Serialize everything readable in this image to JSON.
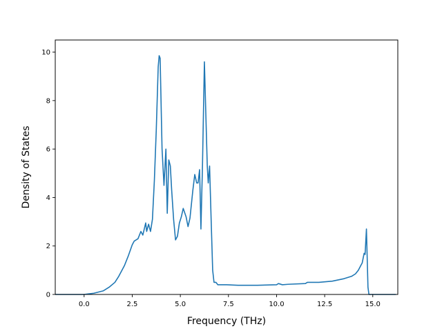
{
  "chart_data": {
    "type": "line",
    "title": "",
    "xlabel": "Frequency (THz)",
    "ylabel": "Density of States",
    "xlim": [
      -1.5,
      16.3
    ],
    "ylim": [
      0,
      10.5
    ],
    "xticks": [
      0.0,
      2.5,
      5.0,
      7.5,
      10.0,
      12.5,
      15.0
    ],
    "xtick_labels": [
      "0.0",
      "2.5",
      "5.0",
      "7.5",
      "10.0",
      "12.5",
      "15.0"
    ],
    "yticks": [
      0,
      2,
      4,
      6,
      8,
      10
    ],
    "ytick_labels": [
      "0",
      "2",
      "4",
      "6",
      "8",
      "10"
    ],
    "grid": false,
    "series": [
      {
        "color": "#1f77b4",
        "x": [
          -1.5,
          0.0,
          0.5,
          1.0,
          1.3,
          1.6,
          1.8,
          2.0,
          2.1,
          2.3,
          2.5,
          2.6,
          2.8,
          2.95,
          3.05,
          3.2,
          3.25,
          3.35,
          3.45,
          3.55,
          3.65,
          3.75,
          3.85,
          3.9,
          3.95,
          4.05,
          4.15,
          4.25,
          4.32,
          4.4,
          4.48,
          4.55,
          4.65,
          4.75,
          4.85,
          4.95,
          5.05,
          5.15,
          5.3,
          5.4,
          5.5,
          5.65,
          5.75,
          5.85,
          5.92,
          6.0,
          6.07,
          6.15,
          6.25,
          6.33,
          6.4,
          6.45,
          6.52,
          6.6,
          6.68,
          6.75,
          6.85,
          6.95,
          7.05,
          7.2,
          7.4,
          8.0,
          9.0,
          10.0,
          10.1,
          10.3,
          10.6,
          11.5,
          11.6,
          12.2,
          12.9,
          13.5,
          13.9,
          14.1,
          14.25,
          14.38,
          14.45,
          14.55,
          14.6,
          14.67,
          14.75,
          14.8,
          15.0,
          16.2
        ],
        "y": [
          0.0,
          0.0,
          0.05,
          0.15,
          0.3,
          0.5,
          0.75,
          1.05,
          1.2,
          1.6,
          2.05,
          2.2,
          2.3,
          2.6,
          2.45,
          2.95,
          2.6,
          2.9,
          2.6,
          3.1,
          4.7,
          6.8,
          9.4,
          9.85,
          9.75,
          6.0,
          4.5,
          6.0,
          3.35,
          5.55,
          5.3,
          4.3,
          3.1,
          2.25,
          2.4,
          2.95,
          3.2,
          3.55,
          3.2,
          2.8,
          3.15,
          4.3,
          4.95,
          4.6,
          4.6,
          5.15,
          2.7,
          5.3,
          9.6,
          7.3,
          5.3,
          4.6,
          5.3,
          3.1,
          1.0,
          0.5,
          0.5,
          0.4,
          0.4,
          0.4,
          0.4,
          0.38,
          0.38,
          0.4,
          0.45,
          0.4,
          0.42,
          0.45,
          0.5,
          0.5,
          0.55,
          0.65,
          0.75,
          0.85,
          1.0,
          1.2,
          1.3,
          1.7,
          1.65,
          2.7,
          0.3,
          0.0,
          0.0,
          0.0
        ]
      }
    ]
  }
}
